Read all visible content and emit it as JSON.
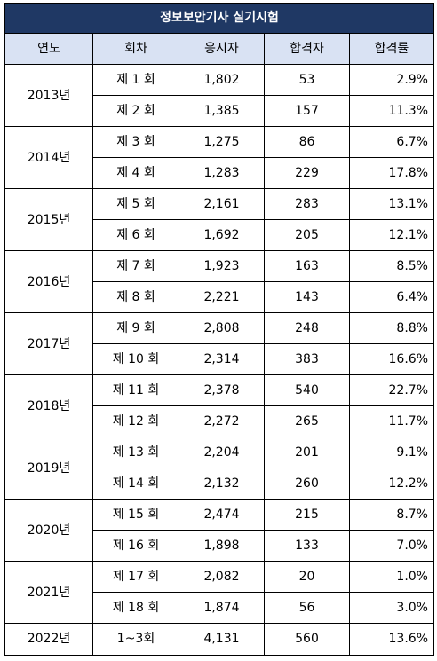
{
  "title": "정보보안기사 실기시험",
  "headers": [
    "연도",
    "회차",
    "응시자",
    "합격자",
    "합격률"
  ],
  "rows": [
    {
      "year": "2013년",
      "sessions": [
        {
          "round": "제 1 회",
          "applicants": "1,802",
          "passed": "53",
          "rate": "2.9%"
        },
        {
          "round": "제 2 회",
          "applicants": "1,385",
          "passed": "157",
          "rate": "11.3%"
        }
      ]
    },
    {
      "year": "2014년",
      "sessions": [
        {
          "round": "제 3 회",
          "applicants": "1,275",
          "passed": "86",
          "rate": "6.7%"
        },
        {
          "round": "제 4 회",
          "applicants": "1,283",
          "passed": "229",
          "rate": "17.8%"
        }
      ]
    },
    {
      "year": "2015년",
      "sessions": [
        {
          "round": "제 5 회",
          "applicants": "2,161",
          "passed": "283",
          "rate": "13.1%"
        },
        {
          "round": "제 6 회",
          "applicants": "1,692",
          "passed": "205",
          "rate": "12.1%"
        }
      ]
    },
    {
      "year": "2016년",
      "sessions": [
        {
          "round": "제 7 회",
          "applicants": "1,923",
          "passed": "163",
          "rate": "8.5%"
        },
        {
          "round": "제 8 회",
          "applicants": "2,221",
          "passed": "143",
          "rate": "6.4%"
        }
      ]
    },
    {
      "year": "2017년",
      "sessions": [
        {
          "round": "제 9 회",
          "applicants": "2,808",
          "passed": "248",
          "rate": "8.8%"
        },
        {
          "round": "제 10 회",
          "applicants": "2,314",
          "passed": "383",
          "rate": "16.6%"
        }
      ]
    },
    {
      "year": "2018년",
      "sessions": [
        {
          "round": "제 11 회",
          "applicants": "2,378",
          "passed": "540",
          "rate": "22.7%"
        },
        {
          "round": "제 12 회",
          "applicants": "2,272",
          "passed": "265",
          "rate": "11.7%"
        }
      ]
    },
    {
      "year": "2019년",
      "sessions": [
        {
          "round": "제 13 회",
          "applicants": "2,204",
          "passed": "201",
          "rate": "9.1%"
        },
        {
          "round": "제 14 회",
          "applicants": "2,132",
          "passed": "260",
          "rate": "12.2%"
        }
      ]
    },
    {
      "year": "2020년",
      "sessions": [
        {
          "round": "제 15 회",
          "applicants": "2,474",
          "passed": "215",
          "rate": "8.7%"
        },
        {
          "round": "제 16 회",
          "applicants": "1,898",
          "passed": "133",
          "rate": "7.0%"
        }
      ]
    },
    {
      "year": "2021년",
      "sessions": [
        {
          "round": "제 17 회",
          "applicants": "2,082",
          "passed": "20",
          "rate": "1.0%"
        },
        {
          "round": "제 18 회",
          "applicants": "1,874",
          "passed": "56",
          "rate": "3.0%"
        }
      ]
    },
    {
      "year": "2022년",
      "sessions": [
        {
          "round": "1~3회",
          "applicants": "4,131",
          "passed": "560",
          "rate": "13.6%"
        }
      ]
    }
  ],
  "colors": {
    "title_bg": "#1f3864",
    "title_fg": "#ffffff",
    "header_bg": "#d9e2f3",
    "border": "#000000"
  }
}
